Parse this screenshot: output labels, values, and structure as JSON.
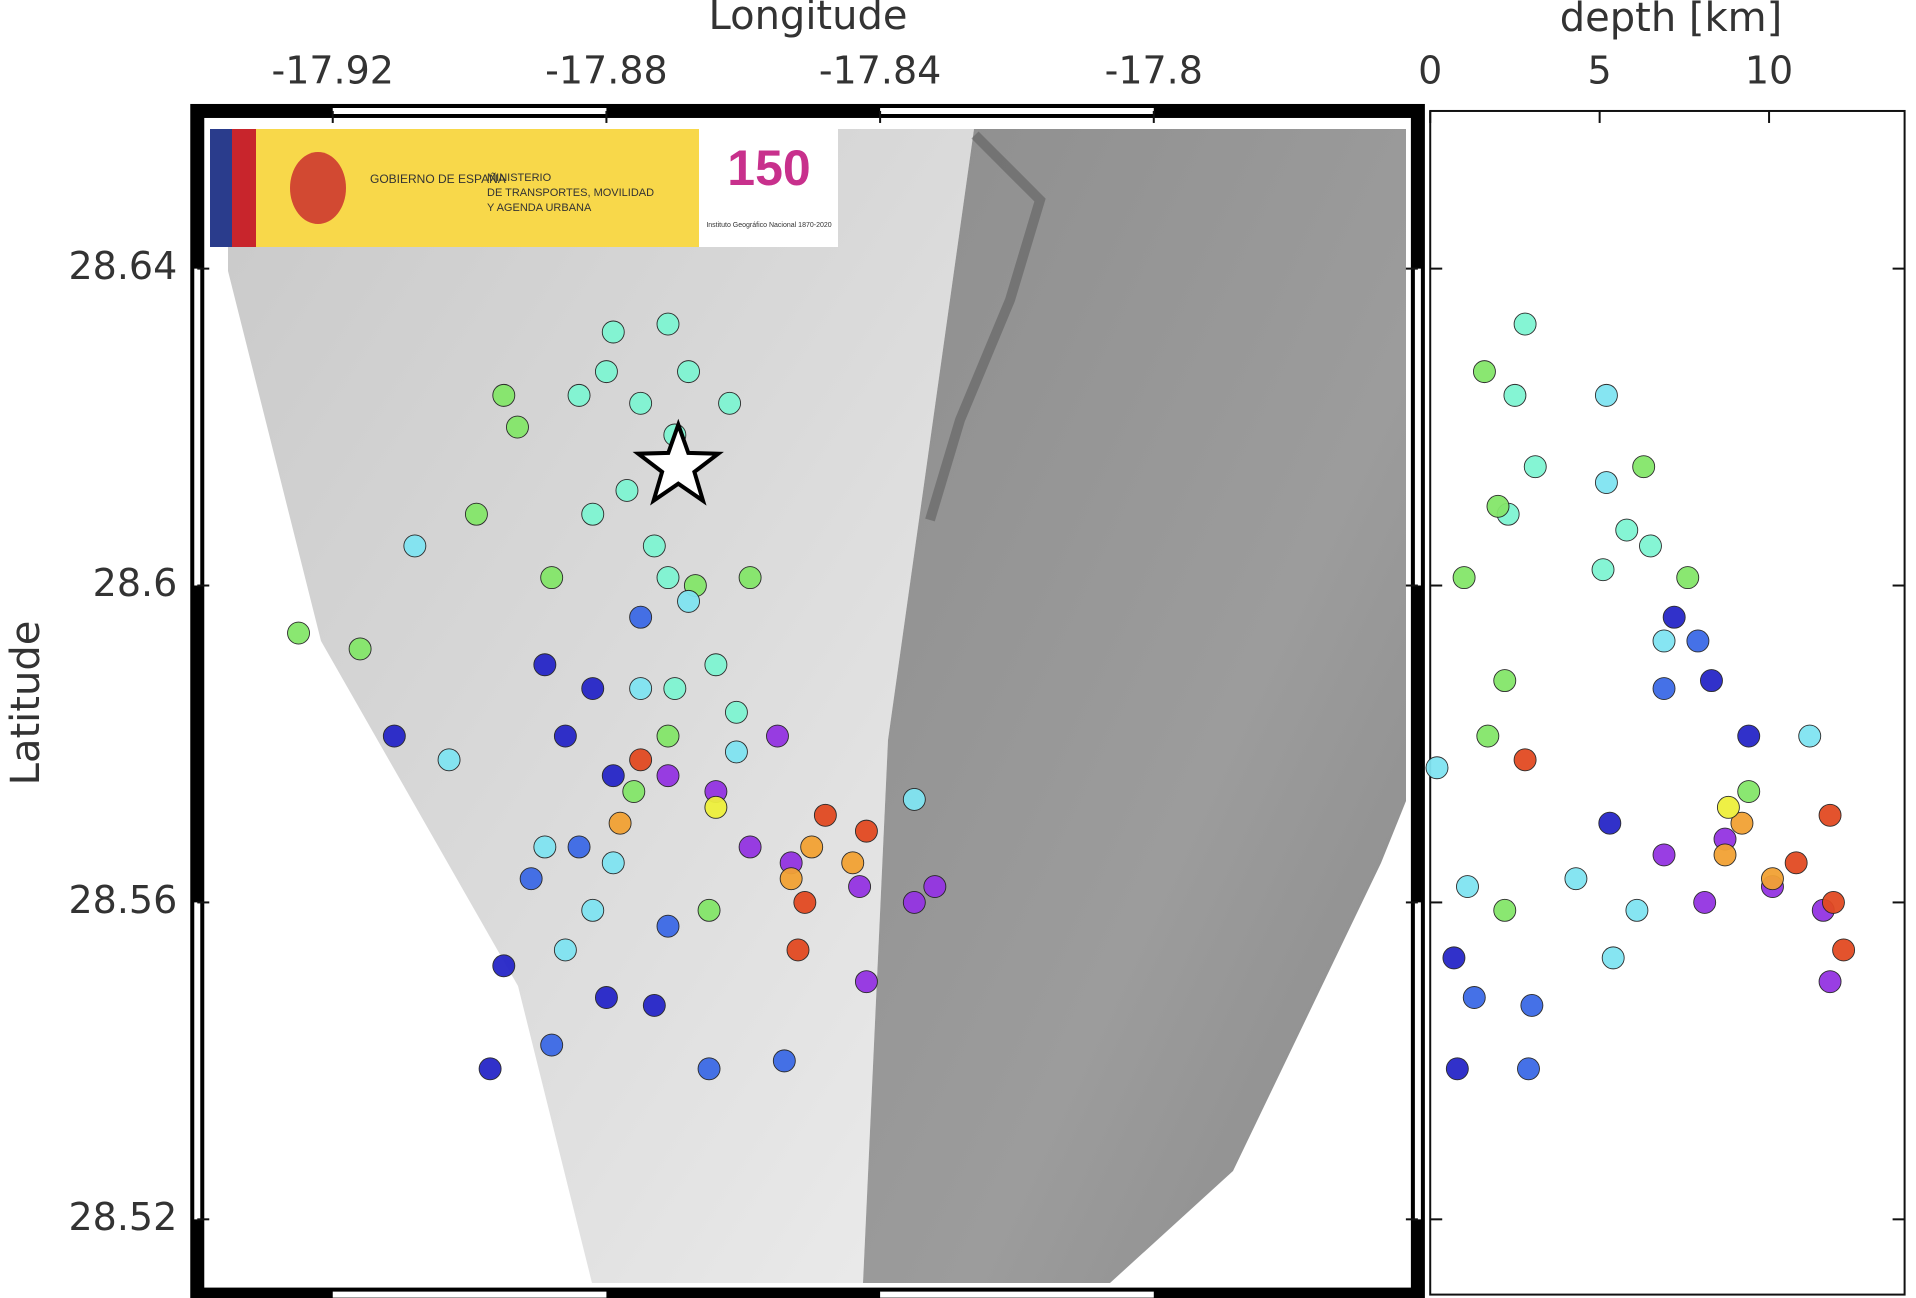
{
  "logo": {
    "government": "GOBIERNO DE ESPAÑA",
    "ministry": [
      "MINISTERIO",
      "DE TRANSPORTES, MOVILIDAD",
      "Y AGENDA URBANA"
    ],
    "anniversary": "150",
    "institute": "Instituto Geográfico Nacional 1870-2020"
  },
  "chart_data": [
    {
      "type": "scatter",
      "x_label": "Longitude",
      "y_label": "Latitude",
      "xlim": [
        -17.9398,
        -17.7614
      ],
      "ylim": [
        28.5105,
        28.6599
      ],
      "xticks": [
        -17.92,
        -17.88,
        -17.84,
        -17.8
      ],
      "yticks": [
        28.64,
        28.6,
        28.56,
        28.52
      ],
      "star": {
        "x": -17.8695,
        "y": 28.615
      },
      "series": [
        {
          "color": "#7ff5d2",
          "x": [
            -17.88,
            -17.875,
            -17.87,
            -17.877,
            -17.873,
            -17.882,
            -17.868,
            -17.884,
            -17.871,
            -17.862,
            -17.879,
            -17.871,
            -17.864,
            -17.87,
            -17.861
          ],
          "y": [
            28.627,
            28.623,
            28.619,
            28.612,
            28.605,
            28.609,
            28.627,
            28.624,
            28.601,
            28.623,
            28.632,
            28.633,
            28.59,
            28.587,
            28.584
          ]
        },
        {
          "color": "#84e66a",
          "x": [
            -17.895,
            -17.899,
            -17.893,
            -17.888,
            -17.867,
            -17.859,
            -17.925,
            -17.916,
            -17.871,
            -17.865,
            -17.876
          ],
          "y": [
            28.624,
            28.609,
            28.62,
            28.601,
            28.6,
            28.601,
            28.594,
            28.592,
            28.581,
            28.559,
            28.574
          ]
        },
        {
          "color": "#80e4f2",
          "x": [
            -17.903,
            -17.879,
            -17.882,
            -17.889,
            -17.875,
            -17.861,
            -17.835,
            -17.886,
            -17.868,
            -17.908
          ],
          "y": [
            28.578,
            28.565,
            28.559,
            28.567,
            28.587,
            28.579,
            28.573,
            28.554,
            28.598,
            28.605
          ]
        },
        {
          "color": "#2626c8",
          "x": [
            -17.889,
            -17.882,
            -17.886,
            -17.879,
            -17.911,
            -17.895,
            -17.897,
            -17.873,
            -17.88
          ],
          "y": [
            28.59,
            28.587,
            28.581,
            28.576,
            28.581,
            28.552,
            28.539,
            28.547,
            28.548
          ]
        },
        {
          "color": "#3c6ae6",
          "x": [
            -17.875,
            -17.891,
            -17.871,
            -17.884,
            -17.854,
            -17.865,
            -17.888
          ],
          "y": [
            28.596,
            28.563,
            28.557,
            28.567,
            28.54,
            28.539,
            28.542
          ]
        },
        {
          "color": "#9434e2",
          "x": [
            -17.859,
            -17.853,
            -17.855,
            -17.843,
            -17.835,
            -17.832,
            -17.864,
            -17.871,
            -17.842
          ],
          "y": [
            28.567,
            28.565,
            28.581,
            28.562,
            28.56,
            28.562,
            28.574,
            28.576,
            28.55
          ]
        },
        {
          "color": "#f2a234",
          "x": [
            -17.878,
            -17.85,
            -17.844,
            -17.853
          ],
          "y": [
            28.57,
            28.567,
            28.565,
            28.563
          ]
        },
        {
          "color": "#e24a22",
          "x": [
            -17.851,
            -17.848,
            -17.842,
            -17.852,
            -17.875
          ],
          "y": [
            28.56,
            28.571,
            28.569,
            28.554,
            28.578
          ]
        },
        {
          "color": "#eef03c",
          "x": [
            -17.864
          ],
          "y": [
            28.572
          ]
        }
      ]
    },
    {
      "type": "scatter",
      "x_label": "depth [km]",
      "xlim": [
        0,
        14.0
      ],
      "ylim": [
        28.5105,
        28.6599
      ],
      "xticks": [
        0,
        5,
        10
      ],
      "yticks": [
        28.64,
        28.6,
        28.56,
        28.52
      ],
      "series": [
        {
          "color": "#7ff5d2",
          "x": [
            2.8,
            2.5,
            3.1,
            2.3,
            6.5,
            5.8,
            5.1
          ],
          "y": [
            28.633,
            28.624,
            28.615,
            28.609,
            28.605,
            28.607,
            28.602
          ]
        },
        {
          "color": "#84e66a",
          "x": [
            1.6,
            2.0,
            6.3,
            7.6,
            1.0,
            1.7,
            2.2,
            9.4,
            2.2
          ],
          "y": [
            28.627,
            28.61,
            28.615,
            28.601,
            28.601,
            28.581,
            28.588,
            28.574,
            28.559
          ]
        },
        {
          "color": "#80e4f2",
          "x": [
            0.2,
            1.1,
            5.2,
            5.2,
            11.2,
            6.1,
            5.4,
            6.9,
            4.3
          ],
          "y": [
            28.577,
            28.562,
            28.624,
            28.613,
            28.581,
            28.559,
            28.553,
            28.593,
            28.563
          ]
        },
        {
          "color": "#2626c8",
          "x": [
            7.2,
            8.3,
            9.4,
            0.7,
            0.8,
            5.3
          ],
          "y": [
            28.596,
            28.588,
            28.581,
            28.553,
            28.539,
            28.57
          ]
        },
        {
          "color": "#3c6ae6",
          "x": [
            6.9,
            7.9,
            1.3,
            2.9,
            3.0
          ],
          "y": [
            28.587,
            28.593,
            28.548,
            28.539,
            28.547
          ]
        },
        {
          "color": "#9434e2",
          "x": [
            8.7,
            10.1,
            8.1,
            11.6,
            11.8,
            6.9
          ],
          "y": [
            28.568,
            28.562,
            28.56,
            28.559,
            28.55,
            28.566
          ]
        },
        {
          "color": "#f2a234",
          "x": [
            9.2,
            10.1,
            8.7
          ],
          "y": [
            28.57,
            28.563,
            28.566
          ]
        },
        {
          "color": "#e24a22",
          "x": [
            10.8,
            11.8,
            11.9,
            12.2,
            2.8
          ],
          "y": [
            28.565,
            28.571,
            28.56,
            28.554,
            28.578
          ]
        },
        {
          "color": "#eef03c",
          "x": [
            8.8
          ],
          "y": [
            28.572
          ]
        }
      ]
    }
  ]
}
